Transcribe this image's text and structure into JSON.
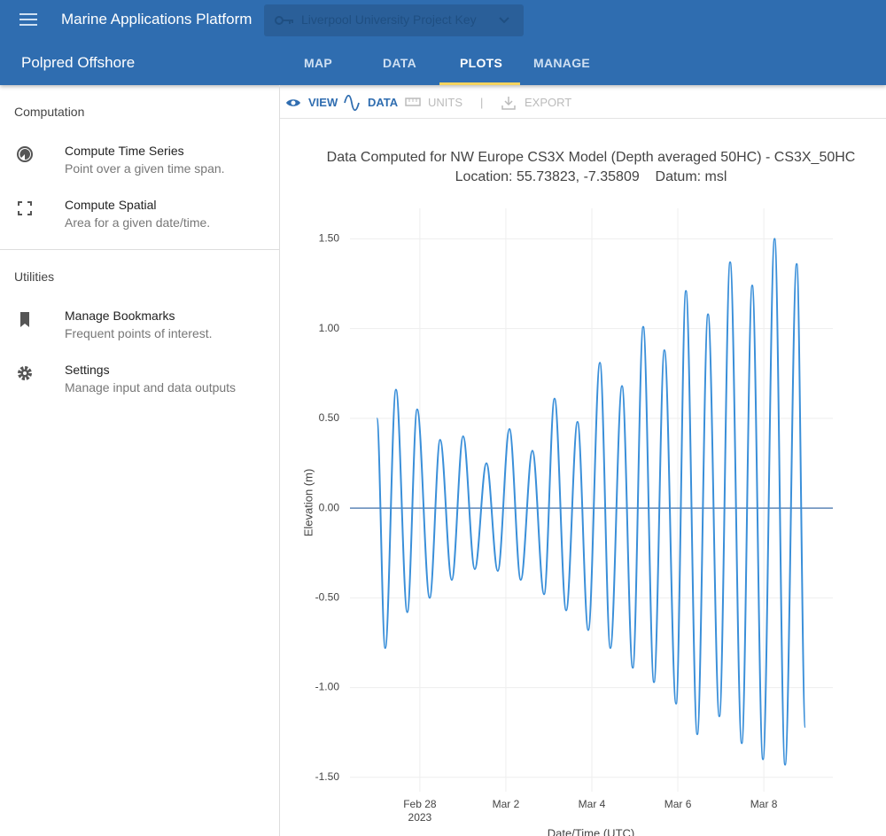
{
  "app_bar": {
    "title": "Marine Applications Platform",
    "project_key": "Liverpool University Project Key",
    "product": "Polpred Offshore",
    "tabs": [
      "MAP",
      "DATA",
      "PLOTS",
      "MANAGE"
    ],
    "active_tab_index": 2
  },
  "sidebar": {
    "sections": [
      {
        "heading": "Computation",
        "items": [
          {
            "title": "Compute Time Series",
            "subtitle": "Point over a given time span."
          },
          {
            "title": "Compute Spatial",
            "subtitle": "Area for a given date/time."
          }
        ]
      },
      {
        "heading": "Utilities",
        "items": [
          {
            "title": "Manage Bookmarks",
            "subtitle": "Frequent points of interest."
          },
          {
            "title": "Settings",
            "subtitle": "Manage input and data outputs"
          }
        ]
      }
    ]
  },
  "toolbar": {
    "items": [
      "VIEW",
      "DATA",
      "UNITS",
      "EXPORT"
    ]
  },
  "chart_data": {
    "type": "line",
    "title": "Data Computed for NW Europe CS3X Model (Depth averaged 50HC) - CS3X_50HC",
    "subtitle": "Location: 55.73823, -7.35809    Datum: msl",
    "y_label": "Elevation (m)",
    "x_label": "Date/Time (UTC)",
    "x": [
      "2023-02-27T00:00",
      "2023-02-27T04:40",
      "2023-02-27T10:40",
      "2023-02-27T17:00",
      "2023-02-27T22:30",
      "2023-02-28T05:30",
      "2023-02-28T11:20",
      "2023-02-28T17:50",
      "2023-03-01T00:10",
      "2023-03-01T06:40",
      "2023-03-01T13:10",
      "2023-03-01T19:30",
      "2023-03-02T02:00",
      "2023-03-02T08:20",
      "2023-03-02T14:50",
      "2023-03-02T21:20",
      "2023-03-03T03:10",
      "2023-03-03T09:40",
      "2023-03-03T16:00",
      "2023-03-03T22:00",
      "2023-03-04T04:30",
      "2023-03-04T10:20",
      "2023-03-04T16:50",
      "2023-03-04T22:50",
      "2023-03-05T04:40",
      "2023-03-05T10:40",
      "2023-03-05T16:30",
      "2023-03-05T23:00",
      "2023-03-06T04:30",
      "2023-03-06T10:50",
      "2023-03-06T16:50",
      "2023-03-06T23:10",
      "2023-03-07T05:10",
      "2023-03-07T11:40",
      "2023-03-07T17:30",
      "2023-03-07T23:30",
      "2023-03-08T06:00",
      "2023-03-08T11:50",
      "2023-03-08T18:20",
      "2023-03-08T23:10"
    ],
    "values": [
      0.5,
      -0.78,
      0.66,
      -0.58,
      0.55,
      -0.5,
      0.38,
      -0.4,
      0.4,
      -0.34,
      0.25,
      -0.35,
      0.44,
      -0.4,
      0.32,
      -0.48,
      0.61,
      -0.57,
      0.48,
      -0.68,
      0.81,
      -0.78,
      0.68,
      -0.89,
      1.01,
      -0.97,
      0.88,
      -1.09,
      1.21,
      -1.26,
      1.08,
      -1.16,
      1.37,
      -1.31,
      1.24,
      -1.4,
      1.5,
      -1.43,
      1.36,
      -1.22
    ],
    "color": "#3a8fd9",
    "xlim": [
      "2023-02-26T09:00",
      "2023-03-09T14:30"
    ],
    "xticks": [
      {
        "value": "2023-02-28",
        "label": "Feb 28\n2023"
      },
      {
        "value": "2023-03-02",
        "label": "Mar 2"
      },
      {
        "value": "2023-03-04",
        "label": "Mar 4"
      },
      {
        "value": "2023-03-06",
        "label": "Mar 6"
      },
      {
        "value": "2023-03-08",
        "label": "Mar 8"
      }
    ],
    "ylim": [
      -1.58,
      1.67
    ],
    "yticks": [
      {
        "value": 1.5,
        "label": "1.50"
      },
      {
        "value": 1,
        "label": "1.00"
      },
      {
        "value": 0.5,
        "label": "0.50"
      },
      {
        "value": 0,
        "label": "0.00"
      },
      {
        "value": -0.5,
        "label": "-0.50"
      },
      {
        "value": -1,
        "label": "-1.00"
      },
      {
        "value": -1.5,
        "label": "-1.50"
      }
    ],
    "grid": true,
    "zeroline": true
  }
}
